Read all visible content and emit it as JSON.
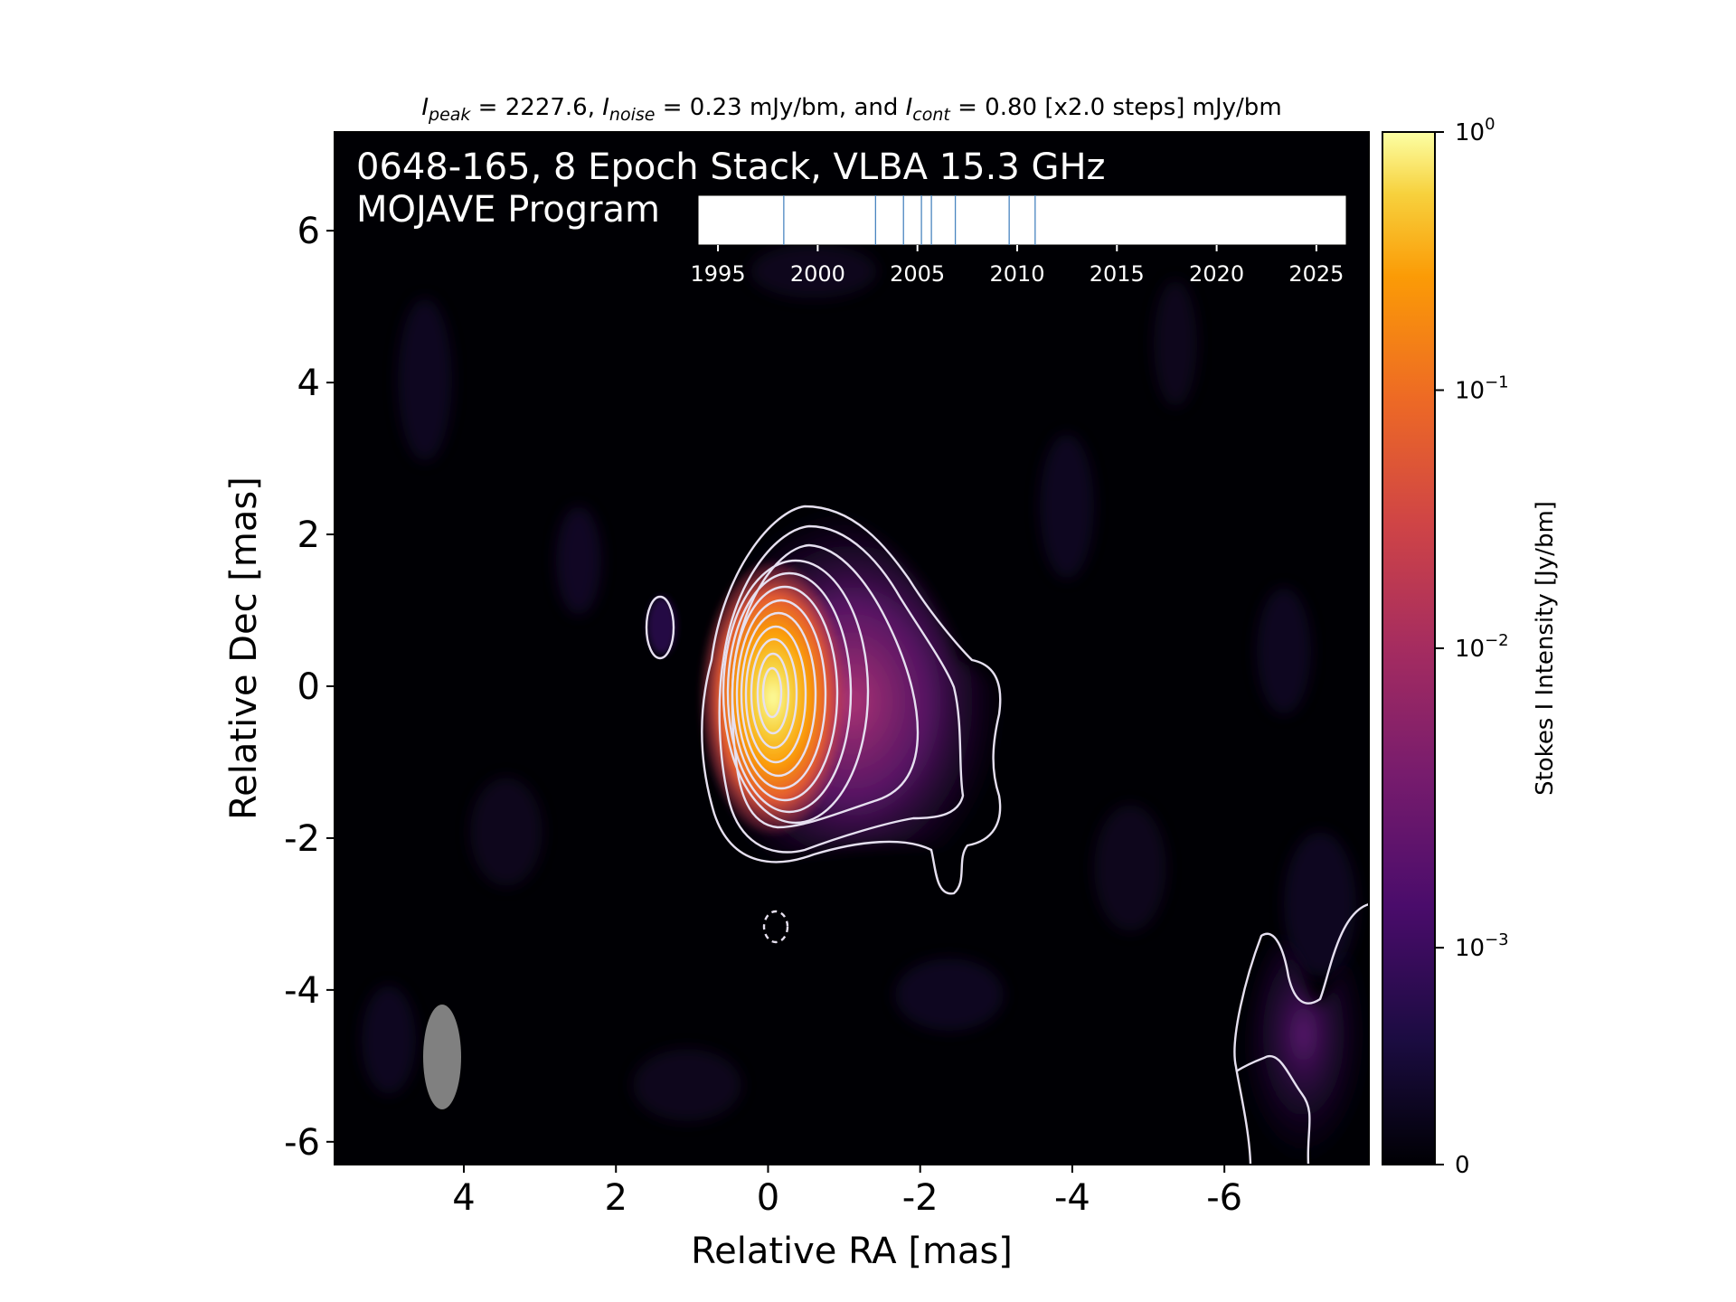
{
  "chart_data": {
    "type": "heatmap",
    "title_parts": [
      {
        "text": "I",
        "style": "italic"
      },
      {
        "text": "peak",
        "style": "italic-sub"
      },
      {
        "text": " = 2227.6, ",
        "style": "normal"
      },
      {
        "text": "I",
        "style": "italic"
      },
      {
        "text": "noise",
        "style": "italic-sub"
      },
      {
        "text": " = 0.23 mJy/bm, and ",
        "style": "normal"
      },
      {
        "text": "I",
        "style": "italic"
      },
      {
        "text": "cont",
        "style": "italic-sub"
      },
      {
        "text": " = 0.80 [x2.0 steps] mJy/bm",
        "style": "normal"
      }
    ],
    "source_label": "0648-165, 8 Epoch Stack, VLBA 15.3 GHz",
    "program_label": "MOJAVE Program",
    "xlabel": "Relative RA [mas]",
    "ylabel": "Relative Dec [mas]",
    "xlim": [
      5.7,
      -7.9
    ],
    "ylim": [
      -6.3,
      7.3
    ],
    "x_ticks": [
      {
        "value": 4,
        "label": "4"
      },
      {
        "value": 2,
        "label": "2"
      },
      {
        "value": 0,
        "label": "0"
      },
      {
        "value": -2,
        "label": "-2"
      },
      {
        "value": -4,
        "label": "-4"
      },
      {
        "value": -6,
        "label": "-6"
      }
    ],
    "y_ticks": [
      {
        "value": 6,
        "label": "6"
      },
      {
        "value": 4,
        "label": "4"
      },
      {
        "value": 2,
        "label": "2"
      },
      {
        "value": 0,
        "label": "0"
      },
      {
        "value": -2,
        "label": "-2"
      },
      {
        "value": -4,
        "label": "-4"
      },
      {
        "value": -6,
        "label": "-6"
      }
    ],
    "colormap": "inferno",
    "colorbar": {
      "label": "Stokes I Intensity [Jy/bm]",
      "scale": "symlog",
      "ticks": [
        {
          "pos": 0.0,
          "base": "0",
          "exp": ""
        },
        {
          "pos": 0.21,
          "base": "10",
          "exp": "−3"
        },
        {
          "pos": 0.5,
          "base": "10",
          "exp": "−2"
        },
        {
          "pos": 0.75,
          "base": "10",
          "exp": "−1"
        },
        {
          "pos": 1.0,
          "base": "10",
          "exp": "0"
        }
      ]
    },
    "core": {
      "ra": 0,
      "dec": 0,
      "peak_jy_per_beam": 2.2276
    },
    "contour_levels_mjy": [
      0.8,
      1.6,
      3.2,
      6.4,
      12.8,
      25.6,
      51.2,
      102.4,
      204.8,
      409.6,
      819.2,
      1638.4
    ],
    "negative_contour_mjy": -0.8,
    "beam": {
      "ra": 4.3,
      "dec": -4.8,
      "major_mas": 1.4,
      "minor_mas": 0.52
    },
    "epoch_timeline": {
      "xlim": [
        1994,
        2026.5
      ],
      "ticks": [
        1995,
        2000,
        2005,
        2010,
        2015,
        2020,
        2025
      ],
      "epochs": [
        1998.3,
        2002.9,
        2004.3,
        2005.2,
        2005.7,
        2006.9,
        2009.6,
        2010.9
      ]
    }
  }
}
